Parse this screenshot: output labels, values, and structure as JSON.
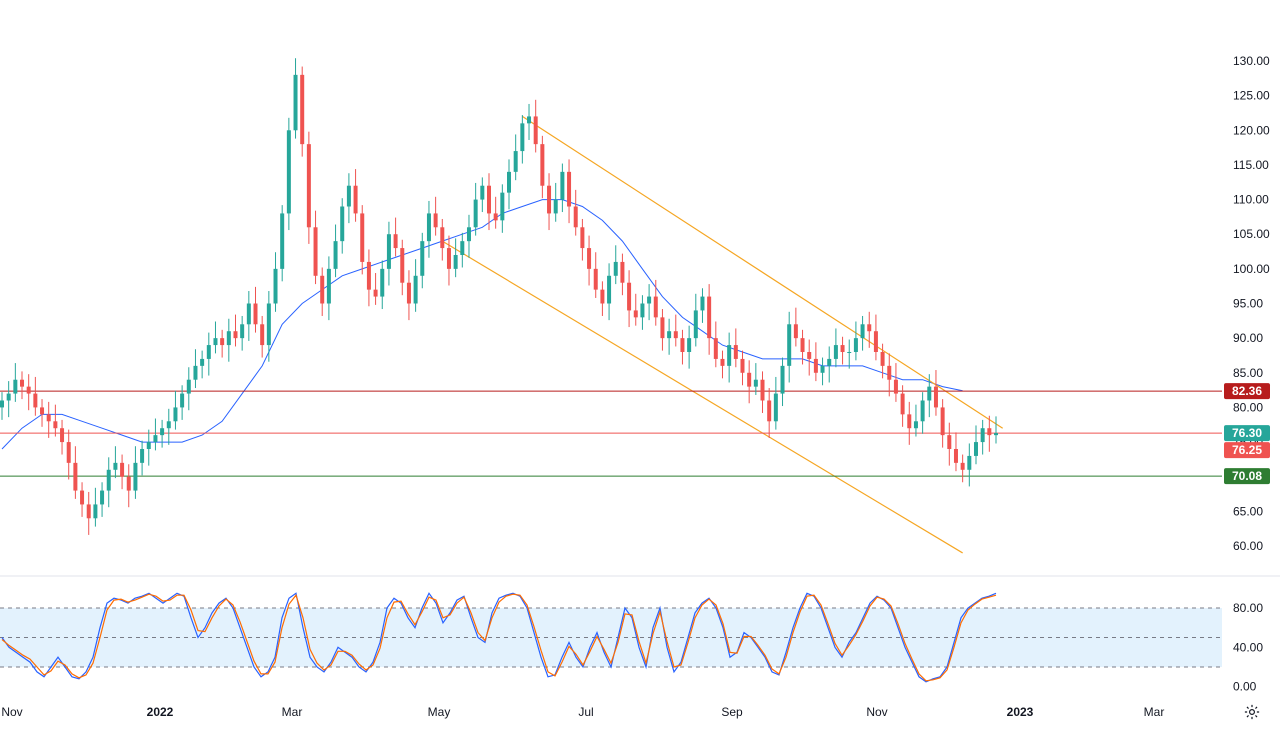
{
  "colors": {
    "up": "#26a69a",
    "down": "#ef5350",
    "ma": "#2962ff",
    "channel": "#f5a623",
    "resistance_line": "#b71c1c",
    "price_line": "#ef5350",
    "support_line": "#2e7d32",
    "stoch_k": "#2962ff",
    "stoch_d": "#ff6d00",
    "stoch_band": "#e3f2fd",
    "grid_dash": "#787b86",
    "axis_text": "#131722"
  },
  "chart_data": [
    {
      "type": "candlestick",
      "panel": "price",
      "y_axis_ticks": [
        "60.00",
        "65.00",
        "70.00",
        "75.00",
        "80.00",
        "85.00",
        "90.00",
        "95.00",
        "100.00",
        "105.00",
        "110.00",
        "115.00",
        "120.00",
        "125.00",
        "130.00"
      ],
      "ylim": [
        57,
        133
      ],
      "x_axis_ticks": [
        "Nov",
        "2022",
        "Mar",
        "May",
        "Jul",
        "Sep",
        "Nov",
        "2023",
        "Mar"
      ],
      "approx_closes": [
        81,
        82,
        84,
        83,
        82,
        80,
        79,
        78,
        77,
        75,
        72,
        68,
        66,
        64,
        66,
        68,
        71,
        72,
        70,
        68,
        72,
        74,
        75,
        76,
        77,
        78,
        80,
        82,
        84,
        86,
        87,
        89,
        90,
        89,
        91,
        90,
        92,
        95,
        92,
        89,
        95,
        100,
        108,
        120,
        128,
        118,
        106,
        99,
        95,
        100,
        104,
        109,
        112,
        108,
        101,
        97,
        96,
        100,
        105,
        103,
        98,
        95,
        99,
        104,
        108,
        106,
        103,
        100,
        102,
        104,
        106,
        110,
        112,
        108,
        107,
        111,
        114,
        117,
        121,
        122,
        118,
        112,
        108,
        110,
        114,
        109,
        106,
        103,
        100,
        97,
        95,
        99,
        101,
        98,
        94,
        93,
        95,
        96,
        93,
        90,
        91,
        90,
        88,
        90,
        94,
        96,
        90,
        87,
        86,
        89,
        87,
        85,
        83,
        84,
        81,
        78,
        82,
        86,
        92,
        90,
        88,
        87,
        85,
        86,
        87,
        89,
        88,
        88,
        90,
        92,
        91,
        88,
        86,
        84,
        82,
        79,
        77,
        78,
        81,
        83,
        80,
        76,
        74,
        72,
        71,
        73,
        75,
        77,
        76,
        76.3
      ],
      "horizontal_levels": [
        {
          "value": 82.36,
          "label": "82.36",
          "color": "#b71c1c"
        },
        {
          "value": 76.3,
          "label": "76.30",
          "color": "#26a69a"
        },
        {
          "value": 76.25,
          "label": "76.25",
          "color": "#ef5350"
        },
        {
          "value": 70.08,
          "label": "70.08",
          "color": "#2e7d32"
        }
      ],
      "moving_average": {
        "color": "#2962ff",
        "points": [
          [
            0,
            74
          ],
          [
            3,
            77
          ],
          [
            6,
            79
          ],
          [
            9,
            79
          ],
          [
            12,
            78
          ],
          [
            15,
            77
          ],
          [
            18,
            76
          ],
          [
            21,
            75
          ],
          [
            24,
            75
          ],
          [
            27,
            75
          ],
          [
            30,
            76
          ],
          [
            33,
            78
          ],
          [
            36,
            82
          ],
          [
            39,
            86
          ],
          [
            42,
            92
          ],
          [
            45,
            95
          ],
          [
            48,
            97
          ],
          [
            51,
            99
          ],
          [
            54,
            100
          ],
          [
            57,
            101
          ],
          [
            60,
            102
          ],
          [
            63,
            103
          ],
          [
            66,
            104
          ],
          [
            69,
            105
          ],
          [
            72,
            106
          ],
          [
            75,
            108
          ],
          [
            78,
            109
          ],
          [
            81,
            110
          ],
          [
            84,
            110
          ],
          [
            87,
            109
          ],
          [
            90,
            107
          ],
          [
            93,
            104
          ],
          [
            96,
            100
          ],
          [
            99,
            96
          ],
          [
            102,
            93
          ],
          [
            105,
            91
          ],
          [
            108,
            89
          ],
          [
            111,
            88
          ],
          [
            114,
            87
          ],
          [
            117,
            87
          ],
          [
            120,
            87
          ],
          [
            123,
            86
          ],
          [
            126,
            86
          ],
          [
            129,
            86
          ],
          [
            132,
            85
          ],
          [
            135,
            84
          ],
          [
            138,
            84
          ],
          [
            141,
            83
          ],
          [
            144,
            82.4
          ]
        ]
      },
      "channel": {
        "color": "#f5a623",
        "upper": [
          [
            78,
            122
          ],
          [
            150,
            77
          ]
        ],
        "lower": [
          [
            66,
            104
          ],
          [
            144,
            59
          ]
        ]
      }
    },
    {
      "type": "line",
      "panel": "stochastic",
      "y_axis_ticks": [
        "0.00",
        "40.00",
        "80.00"
      ],
      "ylim": [
        0,
        100
      ],
      "levels": [
        80,
        50,
        20
      ],
      "series": [
        {
          "color": "#2962ff",
          "values": [
            50,
            40,
            35,
            30,
            25,
            15,
            10,
            20,
            30,
            20,
            10,
            8,
            15,
            30,
            60,
            85,
            90,
            88,
            85,
            90,
            92,
            95,
            90,
            85,
            90,
            95,
            92,
            70,
            50,
            60,
            75,
            85,
            90,
            80,
            60,
            40,
            20,
            10,
            15,
            30,
            70,
            90,
            95,
            60,
            30,
            20,
            15,
            25,
            40,
            35,
            30,
            20,
            15,
            25,
            45,
            80,
            90,
            85,
            70,
            60,
            80,
            95,
            85,
            65,
            75,
            88,
            92,
            70,
            50,
            45,
            75,
            90,
            93,
            95,
            92,
            80,
            55,
            30,
            10,
            12,
            30,
            45,
            30,
            20,
            40,
            55,
            35,
            20,
            50,
            80,
            70,
            40,
            20,
            60,
            80,
            40,
            15,
            25,
            50,
            75,
            85,
            90,
            80,
            60,
            30,
            35,
            55,
            50,
            40,
            30,
            15,
            12,
            35,
            60,
            80,
            95,
            92,
            80,
            60,
            40,
            30,
            45,
            55,
            70,
            85,
            92,
            88,
            80,
            60,
            40,
            25,
            10,
            5,
            8,
            10,
            20,
            45,
            70,
            80,
            85,
            90,
            92,
            95
          ]
        },
        {
          "color": "#ff6d00",
          "values": [
            48,
            42,
            37,
            32,
            28,
            20,
            12,
            16,
            26,
            22,
            13,
            9,
            12,
            24,
            50,
            78,
            88,
            89,
            86,
            88,
            91,
            94,
            92,
            87,
            88,
            93,
            93,
            78,
            57,
            56,
            70,
            82,
            89,
            83,
            66,
            46,
            26,
            13,
            13,
            25,
            60,
            84,
            93,
            70,
            38,
            24,
            17,
            22,
            36,
            36,
            32,
            23,
            17,
            22,
            39,
            70,
            86,
            87,
            74,
            63,
            76,
            91,
            88,
            70,
            73,
            85,
            91,
            75,
            55,
            47,
            70,
            86,
            92,
            94,
            93,
            83,
            61,
            37,
            15,
            11,
            25,
            41,
            33,
            22,
            36,
            51,
            38,
            24,
            45,
            74,
            73,
            46,
            24,
            54,
            76,
            46,
            20,
            22,
            45,
            70,
            83,
            89,
            83,
            64,
            35,
            34,
            51,
            51,
            42,
            32,
            18,
            13,
            30,
            55,
            76,
            92,
            93,
            83,
            64,
            44,
            32,
            42,
            53,
            67,
            82,
            91,
            89,
            82,
            64,
            44,
            28,
            13,
            6,
            7,
            9,
            17,
            40,
            65,
            78,
            84,
            89,
            91,
            93
          ]
        }
      ]
    }
  ]
}
